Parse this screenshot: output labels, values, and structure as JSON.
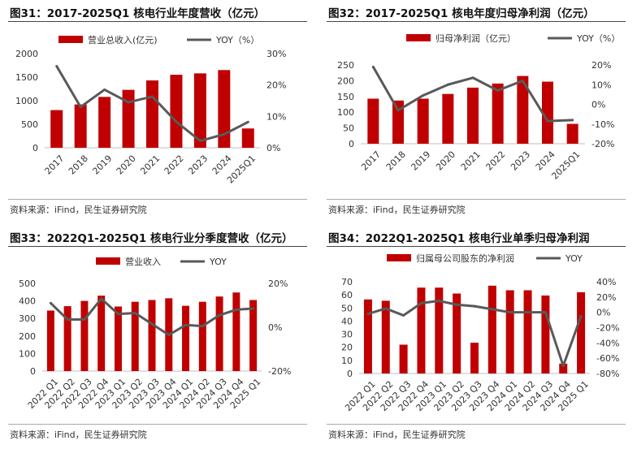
{
  "colors": {
    "bar": "#c00000",
    "line": "#595959",
    "axis": "#bfbfbf"
  },
  "source": "资料来源：iFind，民生证券研究院",
  "chart_data": [
    {
      "type": "bar",
      "title": "图31：2017-2025Q1 核电行业年度营收（亿元）",
      "categories": [
        "2017",
        "2018",
        "2019",
        "2020",
        "2021",
        "2022",
        "2023",
        "2024",
        "2025Q1"
      ],
      "series": [
        {
          "name": "营业总收入(亿元)",
          "type": "bar",
          "axis": "left",
          "values": [
            800,
            920,
            1080,
            1230,
            1430,
            1550,
            1580,
            1650,
            410
          ]
        },
        {
          "name": "YOY（%）",
          "type": "line",
          "axis": "right",
          "values": [
            26,
            13,
            18.5,
            14.5,
            16.3,
            8.3,
            2.2,
            4.3,
            8.2
          ]
        }
      ],
      "y_left": {
        "min": 0,
        "max": 2000,
        "ticks": [
          "0",
          "500",
          "1000",
          "1500",
          "2000"
        ]
      },
      "y_right": {
        "min": 0,
        "max": 30,
        "ticks": [
          "0%",
          "10%",
          "20%",
          "30%"
        ]
      },
      "legend": "top"
    },
    {
      "type": "bar",
      "title": "图32：2017-2025Q1 核电年度归母净利润（亿元）",
      "categories": [
        "2017",
        "2018",
        "2019",
        "2020",
        "2021",
        "2022",
        "2023",
        "2024",
        "2025Q1"
      ],
      "series": [
        {
          "name": "归母净利润（亿元）",
          "type": "bar",
          "axis": "left",
          "values": [
            143,
            137,
            143,
            158,
            178,
            191,
            215,
            197,
            63
          ]
        },
        {
          "name": "YOY（%）",
          "type": "line",
          "axis": "right",
          "values": [
            19,
            -3,
            4.5,
            10,
            13.5,
            7,
            12,
            -8.5,
            -8
          ]
        }
      ],
      "y_left": {
        "min": 0,
        "max": 250,
        "ticks": [
          "0",
          "50",
          "100",
          "150",
          "200",
          "250"
        ]
      },
      "y_right": {
        "min": -20,
        "max": 20,
        "ticks": [
          "-20%",
          "-10%",
          "0%",
          "10%",
          "20%"
        ]
      },
      "legend": "top"
    },
    {
      "type": "bar",
      "title": "图33：2022Q1-2025Q1 核电行业分季度营收（亿元）",
      "categories": [
        "2022 Q1",
        "2022 Q2",
        "2022 Q3",
        "2022 Q4",
        "2023 Q1",
        "2023 Q2",
        "2023 Q3",
        "2023 Q4",
        "2024 Q1",
        "2024 Q2",
        "2024 Q3",
        "2024 Q4",
        "2025 Q1"
      ],
      "series": [
        {
          "name": "营业收入",
          "type": "bar",
          "axis": "left",
          "values": [
            345,
            370,
            400,
            430,
            368,
            395,
            405,
            415,
            372,
            395,
            425,
            448,
            405
          ]
        },
        {
          "name": "YOY",
          "type": "line",
          "axis": "right",
          "values": [
            11,
            3.5,
            3.5,
            13,
            6,
            6.5,
            1.5,
            -3.5,
            1,
            0.5,
            5.5,
            8,
            8.5
          ]
        }
      ],
      "y_left": {
        "min": 0,
        "max": 500,
        "ticks": [
          "0",
          "100",
          "200",
          "300",
          "400",
          "500"
        ]
      },
      "y_right": {
        "min": -20,
        "max": 20,
        "ticks": [
          "-20%",
          "0%",
          "20%"
        ]
      },
      "legend": "top"
    },
    {
      "type": "bar",
      "title": "图34：2022Q1-2025Q1 核电行业单季归母净利润",
      "categories": [
        "2022 Q1",
        "2022 Q2",
        "2022 Q3",
        "2022 Q4",
        "2023 Q1",
        "2023 Q2",
        "2023 Q3",
        "2023 Q4",
        "2024 Q1",
        "2024 Q2",
        "2024 Q3",
        "2024 Q4",
        "2025 Q1"
      ],
      "series": [
        {
          "name": "归属母公司股东的净利润",
          "type": "bar",
          "axis": "left",
          "values": [
            56.5,
            55.5,
            22,
            65.5,
            65.5,
            61,
            23.5,
            67,
            63.5,
            63.5,
            59.5,
            7.5,
            62
          ]
        },
        {
          "name": "YOY",
          "type": "line",
          "axis": "right",
          "values": [
            -2,
            5,
            -4,
            12,
            15,
            10,
            8,
            4,
            0,
            0,
            0,
            -70,
            -5
          ]
        }
      ],
      "y_left": {
        "min": 0,
        "max": 70,
        "ticks": [
          "0",
          "10",
          "20",
          "30",
          "40",
          "50",
          "60",
          "70"
        ]
      },
      "y_right": {
        "min": -80,
        "max": 40,
        "ticks": [
          "-80%",
          "-60%",
          "-40%",
          "-20%",
          "0%",
          "20%",
          "40%"
        ]
      },
      "legend": "top"
    }
  ]
}
